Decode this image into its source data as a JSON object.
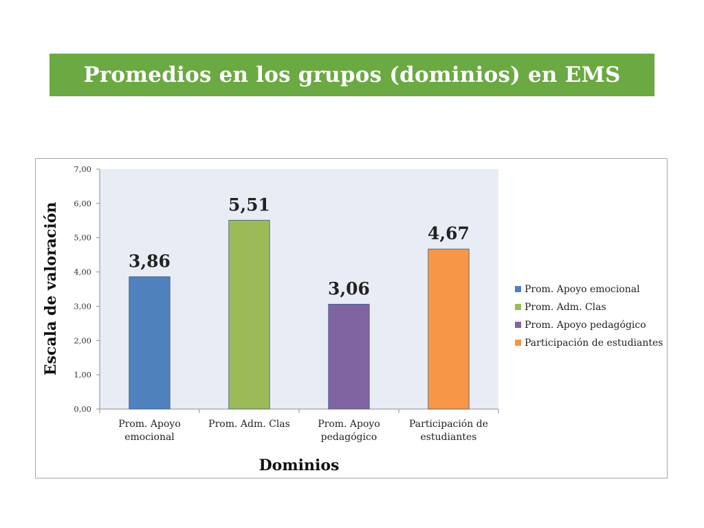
{
  "slide": {
    "title": "Promedios en los grupos (dominios) en EMS",
    "banner_color": "#6ba943"
  },
  "chart_data": {
    "type": "bar",
    "categories": [
      [
        "Prom. Apoyo",
        "emocional"
      ],
      [
        "Prom. Adm. Clas"
      ],
      [
        "Prom. Apoyo",
        "pedagógico"
      ],
      [
        "Participación  de",
        "estudiantes"
      ]
    ],
    "values": [
      3.86,
      5.51,
      3.06,
      4.67
    ],
    "data_labels": [
      "3,86",
      "5,51",
      "3,06",
      "4,67"
    ],
    "colors": [
      "#4f81bd",
      "#9bbb59",
      "#8064a2",
      "#f79646"
    ],
    "legend": [
      "Prom. Apoyo emocional",
      "Prom. Adm. Clas",
      "Prom. Apoyo pedagógico",
      "Participación  de estudiantes"
    ],
    "legend_position": "right",
    "xlabel": "Dominios",
    "ylabel": "Escala de valoración",
    "ylim": [
      0,
      7
    ],
    "yticks": [
      "0,00",
      "1,00",
      "2,00",
      "3,00",
      "4,00",
      "5,00",
      "6,00",
      "7,00"
    ],
    "plot_background": "#e8edf5",
    "grid": false
  }
}
